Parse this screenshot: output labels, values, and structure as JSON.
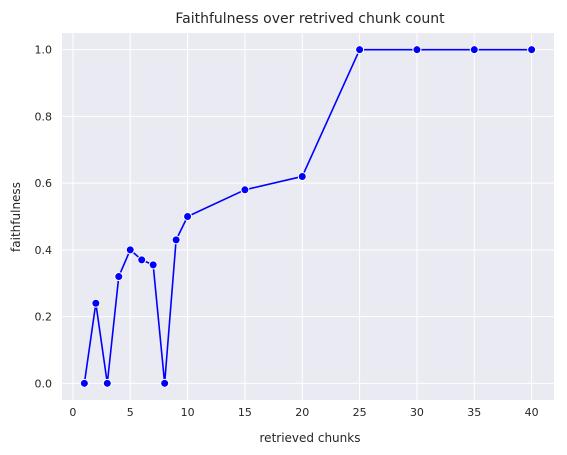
{
  "chart_data": {
    "type": "line",
    "title": "Faithfulness over retrived chunk count",
    "xlabel": "retrieved chunks",
    "ylabel": "faithfulness",
    "xlim": [
      -0.95,
      41.95
    ],
    "ylim": [
      -0.05,
      1.05
    ],
    "xticks": [
      0,
      5,
      10,
      15,
      20,
      25,
      30,
      35,
      40
    ],
    "yticks": [
      0.0,
      0.2,
      0.4,
      0.6,
      0.8,
      1.0
    ],
    "grid": true,
    "series": [
      {
        "color": "#0000ff",
        "marker": "circle",
        "x": [
          1,
          2,
          3,
          4,
          5,
          6,
          7,
          8,
          9,
          10,
          15,
          20,
          25,
          30,
          35,
          40
        ],
        "y": [
          0.0,
          0.24,
          0.0,
          0.32,
          0.4,
          0.37,
          0.355,
          0.0,
          0.43,
          0.5,
          0.58,
          0.62,
          1.0,
          1.0,
          1.0,
          1.0
        ]
      }
    ],
    "colors": {
      "plot_background": "#eaeaf2",
      "grid": "#ffffff",
      "line": "#0000ff",
      "marker_edge": "#ffffff"
    }
  }
}
